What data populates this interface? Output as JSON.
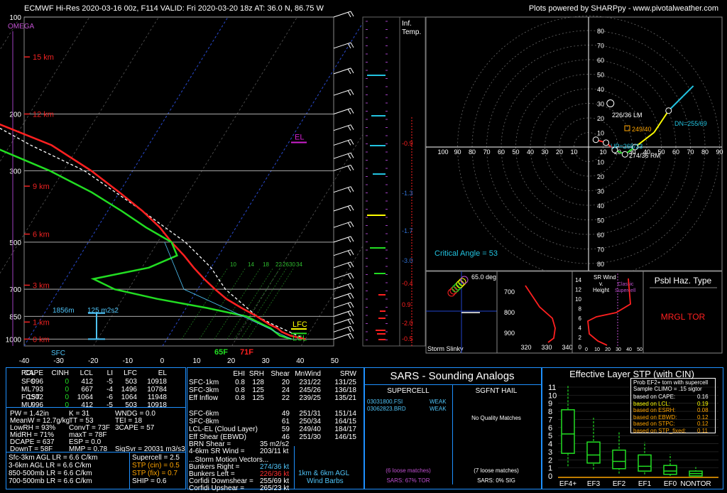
{
  "header": {
    "left": "ECMWF Hi-Res 2020-03-16 00z, F114    VALID: Fri 2020-03-20 18z    AT: 36.0 N, 86.75 W",
    "right": "Plots powered by SHARPpy - www.pivotalweather.com"
  },
  "chart_data": [
    {
      "type": "line",
      "title": "",
      "ylabel": "",
      "xlabel": "",
      "y_ticks_hpa": [
        100,
        200,
        300,
        500,
        700,
        850,
        1000
      ],
      "x_ticks_c": [
        -40,
        -30,
        -20,
        -10,
        0,
        10,
        20,
        30,
        40,
        50
      ],
      "height_labels": [
        "15 km",
        "12 km",
        "9 km",
        "6 km",
        "3 km",
        "1 km",
        "0 km"
      ],
      "height_label_pressures": [
        133,
        200,
        335,
        472,
        680,
        885,
        1000
      ],
      "omega_label": "OMEGA",
      "temperature": [
        {
          "p": 1000,
          "t": 20
        },
        {
          "p": 975,
          "t": 17.5
        },
        {
          "p": 950,
          "t": 16
        },
        {
          "p": 925,
          "t": 15
        },
        {
          "p": 900,
          "t": 13.5
        },
        {
          "p": 850,
          "t": 11
        },
        {
          "p": 800,
          "t": 8
        },
        {
          "p": 750,
          "t": 5
        },
        {
          "p": 700,
          "t": 2.5
        },
        {
          "p": 650,
          "t": 0
        },
        {
          "p": 600,
          "t": -2.5
        },
        {
          "p": 550,
          "t": -5
        },
        {
          "p": 500,
          "t": -8
        },
        {
          "p": 450,
          "t": -11
        },
        {
          "p": 400,
          "t": -15
        },
        {
          "p": 350,
          "t": -20
        },
        {
          "p": 300,
          "t": -26
        },
        {
          "p": 250,
          "t": -34
        },
        {
          "p": 220,
          "t": -42
        },
        {
          "p": 200,
          "t": -48
        },
        {
          "p": 180,
          "t": -52
        },
        {
          "p": 150,
          "t": -53
        },
        {
          "p": 125,
          "t": -55
        },
        {
          "p": 100,
          "t": -58
        }
      ],
      "dewpoint": [
        {
          "p": 1000,
          "t": 18
        },
        {
          "p": 975,
          "t": 16
        },
        {
          "p": 950,
          "t": 15
        },
        {
          "p": 925,
          "t": 14
        },
        {
          "p": 900,
          "t": 12.5
        },
        {
          "p": 850,
          "t": 9.5
        },
        {
          "p": 800,
          "t": 3
        },
        {
          "p": 750,
          "t": -5
        },
        {
          "p": 700,
          "t": -12
        },
        {
          "p": 650,
          "t": -16
        },
        {
          "p": 600,
          "t": -9
        },
        {
          "p": 550,
          "t": -6
        },
        {
          "p": 500,
          "t": -8
        },
        {
          "p": 450,
          "t": -13
        },
        {
          "p": 400,
          "t": -18
        },
        {
          "p": 350,
          "t": -24
        },
        {
          "p": 300,
          "t": -32
        },
        {
          "p": 250,
          "t": -43
        },
        {
          "p": 200,
          "t": -55
        },
        {
          "p": 150,
          "t": -70
        },
        {
          "p": 100,
          "t": -80
        }
      ],
      "parcel": [
        {
          "p": 1000,
          "t": 20
        },
        {
          "p": 900,
          "t": 14
        },
        {
          "p": 850,
          "t": 11
        },
        {
          "p": 700,
          "t": 4
        },
        {
          "p": 600,
          "t": 0
        },
        {
          "p": 500,
          "t": -6
        },
        {
          "p": 400,
          "t": -15
        },
        {
          "p": 300,
          "t": -27
        },
        {
          "p": 250,
          "t": -37
        },
        {
          "p": 200,
          "t": -48
        },
        {
          "p": 150,
          "t": -63
        },
        {
          "p": 100,
          "t": -85
        }
      ],
      "surface_labels": {
        "td": "65F",
        "t": "71F",
        "sfc": "SFC"
      },
      "inflow_label_left": "1856m",
      "inflow_label_right": "125 m2s2",
      "levels": {
        "lfc": "LFC",
        "lcl": "LCL",
        "el": "EL"
      },
      "mixing_ratio_labels": [
        "10",
        "14",
        "18",
        "22",
        "26",
        "30",
        "34"
      ]
    },
    {
      "type": "line",
      "title": "Inf.\nTemp.",
      "advection_labels": [
        "-0.9",
        "-1.3",
        "-1.7",
        "-3.0",
        "-0.4",
        "0.9",
        "-2.0",
        "-0.5"
      ]
    },
    {
      "type": "scatter",
      "title": "",
      "hodo_x_labels": [
        "10",
        "20",
        "30",
        "40",
        "50",
        "60",
        "70",
        "80",
        "90",
        "100"
      ],
      "hodo_y_labels": [
        "80",
        "70",
        "60",
        "50",
        "40",
        "30",
        "20",
        "10"
      ],
      "lm_label": "226/36 LM",
      "rm_label": "274/36 RM",
      "dn_label": "DN=255/69",
      "up_label": "UP=265/23",
      "mean_label": "249/40",
      "critical_angle": "Critical Angle = 53",
      "points": [
        {
          "x": 5,
          "y": 5
        },
        {
          "x": 12,
          "y": 3
        },
        {
          "x": 18,
          "y": -2
        },
        {
          "x": 25,
          "y": -5
        },
        {
          "x": 32,
          "y": 0
        },
        {
          "x": 45,
          "y": 10
        },
        {
          "x": 55,
          "y": 25
        },
        {
          "x": 65,
          "y": 35
        },
        {
          "x": 72,
          "y": 42
        }
      ]
    },
    {
      "type": "line",
      "title": "",
      "slinky_label": "Storm Slinky",
      "slinky_angle": "65.0 deg",
      "theta_p_labels": [
        "700",
        "800",
        "900"
      ],
      "theta_x_labels": [
        "320",
        "330",
        "340"
      ],
      "srw_title": "SR Wind\nv.\nHeight",
      "srw_x_labels": [
        "0",
        "10",
        "20",
        "30",
        "40",
        "50"
      ],
      "srw_y_labels": [
        "14",
        "12",
        "10",
        "8",
        "6",
        "4",
        "2",
        "0"
      ],
      "supercell_label": "Classic\nSupercell",
      "hazard_title": "Psbl Haz. Type",
      "hazard_value": "MRGL TOR"
    }
  ],
  "thermo": {
    "rows_head": [
      "PCL",
      "CAPE",
      "CINH",
      "LCL",
      "LI",
      "LFC",
      "EL"
    ],
    "rows": [
      [
        "SFC",
        "996",
        "0",
        "412",
        "-5",
        "503",
        "10918"
      ],
      [
        "ML",
        "793",
        "0",
        "667",
        "-4",
        "1496",
        "10784"
      ],
      [
        "FCST",
        "1502",
        "0",
        "1064",
        "-6",
        "1064",
        "11948"
      ],
      [
        "MU",
        "996",
        "0",
        "412",
        "-5",
        "503",
        "10918"
      ]
    ],
    "indices": [
      [
        "PW = 1.42in",
        "K = 31",
        "WNDG = 0.0"
      ],
      [
        "MeanW = 12.7g/kg",
        "TT = 53",
        "TEI = 18"
      ],
      [
        "LowRH = 93%",
        "ConvT = 73F",
        "3CAPE = 57"
      ],
      [
        "MidRH = 71%",
        "maxT = 78F",
        ""
      ],
      [
        "DCAPE = 637",
        "ESP = 0.0",
        ""
      ],
      [
        "DownT = 58F",
        "MMP = 0.78",
        "SigSvr = 20031 m3/s3"
      ]
    ],
    "lapse": [
      "Sfc-3km AGL LR = 6.6 C/km",
      "3-6km AGL LR = 6.6 C/km",
      "850-500mb LR = 6.6 C/km",
      "700-500mb LR = 6.6 C/km"
    ],
    "composites": [
      "Supercell = 2.5",
      "STP (cin) = 0.5",
      "STP (fix) = 0.7",
      "SHIP = 0.6"
    ]
  },
  "kinematic": {
    "head": [
      "EHI",
      "SRH",
      "Shear",
      "MnWind",
      "SRW"
    ],
    "rows": [
      [
        "SFC-1km",
        "0.8",
        "128",
        "20",
        "231/22",
        "131/25"
      ],
      [
        "SFC-3km",
        "0.8",
        "125",
        "24",
        "245/26",
        "136/18"
      ],
      [
        "Eff Inflow",
        "0.8",
        "125",
        "22",
        "239/25",
        "135/21"
      ],
      [
        "",
        "",
        "",
        "",
        "",
        ""
      ],
      [
        "SFC-6km",
        "",
        "",
        "49",
        "251/31",
        "151/14"
      ],
      [
        "SFC-8km",
        "",
        "",
        "61",
        "250/34",
        "164/15"
      ],
      [
        "LCL-EL (Cloud Layer)",
        "",
        "",
        "59",
        "249/40",
        "184/17"
      ],
      [
        "Eff Shear (EBWD)",
        "",
        "",
        "46",
        "251/30",
        "146/15"
      ]
    ],
    "brn": [
      "BRN Shear =",
      "35 m2/s2"
    ],
    "srwind": [
      "4-6km SR Wind =",
      "203/11 kt"
    ],
    "motion_title": "...Storm Motion Vectors...",
    "motion": [
      [
        "Bunkers Right =",
        "274/36 kt"
      ],
      [
        "Bunkers Left =",
        "226/36 kt"
      ],
      [
        "Corfidi Downshear =",
        "255/69 kt"
      ],
      [
        "Corfidi Upshear =",
        "265/23 kt"
      ]
    ],
    "barbs_label": "1km & 6km AGL\nWind Barbs"
  },
  "sars": {
    "title": "SARS - Sounding Analogs",
    "supercell": "SUPERCELL",
    "hail": "SGFNT HAIL",
    "matches": [
      [
        "03031800.FSI",
        "WEAK"
      ],
      [
        "03062823.BRD",
        "WEAK"
      ]
    ],
    "no_matches": "No Quality Matches",
    "loose_left": "(6 loose matches)",
    "loose_right": "(7 loose matches)",
    "tor_left": "SARS: 67% TOR",
    "tor_right": "SARS: 0% SIG"
  },
  "stp": {
    "title": "Effective Layer STP (with CIN)",
    "y_labels": [
      "11",
      "10",
      "9",
      "8",
      "7",
      "6",
      "5",
      "4",
      "3",
      "2",
      "1",
      "0"
    ],
    "categories": [
      "EF4+",
      "EF3",
      "EF2",
      "EF1",
      "EF0",
      "NONTOR"
    ],
    "box": [
      {
        "min": 1.2,
        "q1": 2.8,
        "med": 5.2,
        "q3": 8.2,
        "max": 11.2
      },
      {
        "min": 0.8,
        "q1": 1.6,
        "med": 2.6,
        "q3": 4.2,
        "max": 7.2
      },
      {
        "min": 0.3,
        "q1": 0.9,
        "med": 1.8,
        "q3": 3.2,
        "max": 5.5
      },
      {
        "min": 0.2,
        "q1": 0.6,
        "med": 1.2,
        "q3": 2.6,
        "max": 4.2
      },
      {
        "min": 0.0,
        "q1": 0.2,
        "med": 0.6,
        "q3": 1.3,
        "max": 2.7
      },
      {
        "min": 0.0,
        "q1": 0.0,
        "med": 0.3,
        "q3": 0.6,
        "max": 1.1
      }
    ],
    "legend_title": "Prob EF2+ torn with supercell",
    "legend_sub": "Sample CLIMO = .15 sigtor",
    "legend": [
      [
        "based on CAPE:",
        "0.16"
      ],
      [
        "based on LCL:",
        "0.19"
      ],
      [
        "based on ESRH:",
        "0.08"
      ],
      [
        "based on EBWD:",
        "0.12"
      ],
      [
        "based on STPC:",
        "0.12"
      ],
      [
        "based on STP_fixed:",
        "0.11"
      ]
    ]
  },
  "colors": {
    "temp": "#ff2020",
    "dew": "#22dd22",
    "parcel": "#ffffff",
    "panel": "#1e90ff"
  }
}
